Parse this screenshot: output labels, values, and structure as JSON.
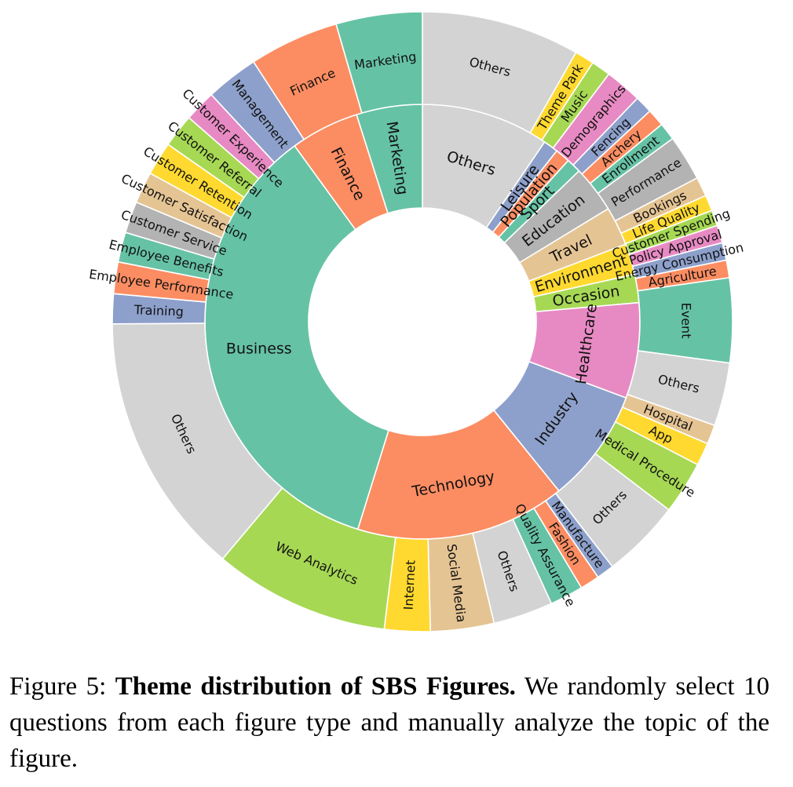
{
  "caption": {
    "prefix": "Figure 5:",
    "bold": "Theme distribution of SBS Figures.",
    "text": "We randomly select 10 questions from each figure type and manually analyze the topic of the figure."
  },
  "chart_data": {
    "type": "sunburst",
    "start_angle_deg": 0,
    "direction": "clockwise",
    "colors": {
      "teal": "#66c2a5",
      "orange": "#fc8d62",
      "blue": "#8da0cb",
      "pink": "#e78ac3",
      "lime": "#a6d854",
      "yellow": "#ffd92f",
      "tan": "#e5c494",
      "gray": "#b3b3b3",
      "lightgray": "#d3d3d3"
    },
    "inner_ring": [
      {
        "name": "Others",
        "value": 9.5,
        "color": "#d3d3d3"
      },
      {
        "name": "Leisure",
        "value": 1.1,
        "color": "#8da0cb"
      },
      {
        "name": "Population",
        "value": 1.1,
        "color": "#fc8d62"
      },
      {
        "name": "Sport",
        "value": 1.1,
        "color": "#66c2a5"
      },
      {
        "name": "Education",
        "value": 3.5,
        "color": "#b3b3b3"
      },
      {
        "name": "Travel",
        "value": 2.9,
        "color": "#e5c494"
      },
      {
        "name": "Environment",
        "value": 2.3,
        "color": "#ffd92f"
      },
      {
        "name": "Occasion",
        "value": 2.1,
        "color": "#a6d854"
      },
      {
        "name": "Healthcare",
        "value": 7.1,
        "color": "#e78ac3"
      },
      {
        "name": "Industry",
        "value": 8.5,
        "color": "#8da0cb"
      },
      {
        "name": "Technology",
        "value": 15.6,
        "color": "#fc8d62"
      },
      {
        "name": "Business",
        "value": 35.2,
        "color": "#66c2a5"
      },
      {
        "name": "Finance",
        "value": 5.1,
        "color": "#fc8d62"
      },
      {
        "name": "Marketing",
        "value": 4.9,
        "color": "#66c2a5"
      }
    ],
    "outer_ring": [
      {
        "name": "Others",
        "value": 9.0,
        "color": "#d3d3d3"
      },
      {
        "name": "Theme Park",
        "value": 1.1,
        "color": "#ffd92f"
      },
      {
        "name": "Music",
        "value": 1.1,
        "color": "#a6d854"
      },
      {
        "name": "Demographics",
        "value": 2.1,
        "color": "#e78ac3"
      },
      {
        "name": "Fencing",
        "value": 1.0,
        "color": "#8da0cb"
      },
      {
        "name": "Archery",
        "value": 1.0,
        "color": "#fc8d62"
      },
      {
        "name": "Enrollment",
        "value": 1.0,
        "color": "#66c2a5"
      },
      {
        "name": "Performance",
        "value": 2.6,
        "color": "#b3b3b3"
      },
      {
        "name": "Bookings",
        "value": 1.1,
        "color": "#e5c494"
      },
      {
        "name": "Life Quality",
        "value": 0.9,
        "color": "#ffd92f"
      },
      {
        "name": "Customer Spending",
        "value": 0.9,
        "color": "#a6d854"
      },
      {
        "name": "Policy Approval",
        "value": 1.0,
        "color": "#e78ac3"
      },
      {
        "name": "Energy Consumption",
        "value": 1.0,
        "color": "#8da0cb"
      },
      {
        "name": "Agriculture",
        "value": 1.0,
        "color": "#fc8d62"
      },
      {
        "name": "Event",
        "value": 4.8,
        "color": "#66c2a5"
      },
      {
        "name": "Others",
        "value": 3.6,
        "color": "#d3d3d3"
      },
      {
        "name": "Hospital",
        "value": 1.1,
        "color": "#e5c494"
      },
      {
        "name": "App",
        "value": 1.3,
        "color": "#ffd92f"
      },
      {
        "name": "Medical Procedure",
        "value": 3.0,
        "color": "#a6d854"
      },
      {
        "name": "Others",
        "value": 4.5,
        "color": "#d3d3d3"
      },
      {
        "name": "Manufacture",
        "value": 1.0,
        "color": "#8da0cb"
      },
      {
        "name": "Fashion",
        "value": 1.1,
        "color": "#fc8d62"
      },
      {
        "name": "Quality Assurance",
        "value": 1.9,
        "color": "#66c2a5"
      },
      {
        "name": "Others",
        "value": 3.4,
        "color": "#d3d3d3"
      },
      {
        "name": "Social Media",
        "value": 3.6,
        "color": "#e5c494"
      },
      {
        "name": "Internet",
        "value": 2.6,
        "color": "#ffd92f"
      },
      {
        "name": "Web Analytics",
        "value": 10.0,
        "color": "#a6d854"
      },
      {
        "name": "Others",
        "value": 15.0,
        "color": "#d3d3d3"
      },
      {
        "name": "Training",
        "value": 1.7,
        "color": "#8da0cb"
      },
      {
        "name": "Employee Performance",
        "value": 1.8,
        "color": "#fc8d62"
      },
      {
        "name": "Employee Benefits",
        "value": 1.7,
        "color": "#66c2a5"
      },
      {
        "name": "Customer Service",
        "value": 1.8,
        "color": "#b3b3b3"
      },
      {
        "name": "Customer Satisfaction",
        "value": 1.8,
        "color": "#e5c494"
      },
      {
        "name": "Customer Retention",
        "value": 1.9,
        "color": "#ffd92f"
      },
      {
        "name": "Customer Referral",
        "value": 1.9,
        "color": "#a6d854"
      },
      {
        "name": "Customer Experience",
        "value": 1.8,
        "color": "#e78ac3"
      },
      {
        "name": "Management",
        "value": 3.0,
        "color": "#8da0cb"
      },
      {
        "name": "Finance",
        "value": 5.1,
        "color": "#fc8d62"
      },
      {
        "name": "Marketing",
        "value": 4.9,
        "color": "#66c2a5"
      }
    ]
  }
}
